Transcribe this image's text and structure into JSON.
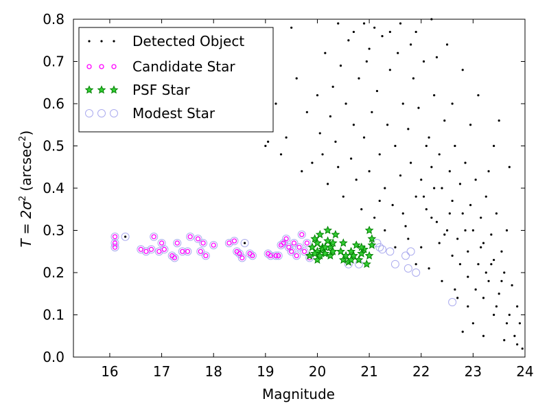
{
  "chart_data": {
    "type": "scatter",
    "xlabel": "Magnitude",
    "ylabel_main": "T = 2σ",
    "ylabel_sup": "2",
    "ylabel_units_open": " (arcsec",
    "ylabel_units_sup": "2",
    "ylabel_units_close": ")",
    "xlim": [
      15.3,
      24.0
    ],
    "ylim": [
      0.0,
      0.8
    ],
    "xticks": [
      16,
      17,
      18,
      19,
      20,
      21,
      22,
      23,
      24
    ],
    "yticks": [
      0.0,
      0.1,
      0.2,
      0.3,
      0.4,
      0.5,
      0.6,
      0.7,
      0.8
    ],
    "xtick_labels": [
      "16",
      "17",
      "18",
      "19",
      "20",
      "21",
      "22",
      "23",
      "24"
    ],
    "ytick_labels": [
      "0.0",
      "0.1",
      "0.2",
      "0.3",
      "0.4",
      "0.5",
      "0.6",
      "0.7",
      "0.8"
    ],
    "grid": false,
    "legend_position": "top-left",
    "series": [
      {
        "name": "Detected Object",
        "marker": "dot",
        "color": "#000000",
        "points": [
          [
            16.3,
            0.285
          ],
          [
            18.6,
            0.27
          ],
          [
            19.0,
            0.5
          ],
          [
            19.05,
            0.51
          ],
          [
            19.1,
            0.55
          ],
          [
            19.2,
            0.6
          ],
          [
            19.3,
            0.48
          ],
          [
            19.4,
            0.52
          ],
          [
            19.5,
            0.78
          ],
          [
            19.6,
            0.66
          ],
          [
            19.7,
            0.44
          ],
          [
            19.8,
            0.58
          ],
          [
            19.9,
            0.46
          ],
          [
            20.0,
            0.62
          ],
          [
            20.05,
            0.53
          ],
          [
            20.1,
            0.48
          ],
          [
            20.15,
            0.72
          ],
          [
            20.2,
            0.41
          ],
          [
            20.25,
            0.57
          ],
          [
            20.3,
            0.64
          ],
          [
            20.35,
            0.51
          ],
          [
            20.4,
            0.45
          ],
          [
            20.45,
            0.69
          ],
          [
            20.5,
            0.38
          ],
          [
            20.55,
            0.6
          ],
          [
            20.6,
            0.75
          ],
          [
            20.65,
            0.47
          ],
          [
            20.7,
            0.55
          ],
          [
            20.75,
            0.42
          ],
          [
            20.8,
            0.66
          ],
          [
            20.85,
            0.35
          ],
          [
            20.9,
            0.52
          ],
          [
            20.95,
            0.7
          ],
          [
            21.0,
            0.44
          ],
          [
            21.05,
            0.58
          ],
          [
            21.1,
            0.33
          ],
          [
            21.15,
            0.63
          ],
          [
            21.2,
            0.48
          ],
          [
            21.25,
            0.76
          ],
          [
            21.3,
            0.4
          ],
          [
            21.35,
            0.55
          ],
          [
            21.4,
            0.68
          ],
          [
            21.45,
            0.36
          ],
          [
            21.5,
            0.5
          ],
          [
            21.55,
            0.72
          ],
          [
            21.6,
            0.43
          ],
          [
            21.65,
            0.6
          ],
          [
            21.7,
            0.31
          ],
          [
            21.75,
            0.54
          ],
          [
            21.8,
            0.46
          ],
          [
            21.85,
            0.66
          ],
          [
            21.9,
            0.38
          ],
          [
            21.95,
            0.59
          ],
          [
            22.0,
            0.42
          ],
          [
            22.05,
            0.7
          ],
          [
            22.1,
            0.35
          ],
          [
            22.15,
            0.52
          ],
          [
            22.2,
            0.45
          ],
          [
            22.25,
            0.62
          ],
          [
            22.3,
            0.32
          ],
          [
            22.35,
            0.48
          ],
          [
            22.4,
            0.4
          ],
          [
            22.45,
            0.56
          ],
          [
            22.5,
            0.3
          ],
          [
            22.55,
            0.44
          ],
          [
            22.6,
            0.37
          ],
          [
            22.65,
            0.5
          ],
          [
            22.7,
            0.28
          ],
          [
            22.75,
            0.41
          ],
          [
            22.8,
            0.34
          ],
          [
            22.85,
            0.46
          ],
          [
            22.9,
            0.25
          ],
          [
            22.95,
            0.36
          ],
          [
            23.0,
            0.3
          ],
          [
            23.05,
            0.42
          ],
          [
            23.1,
            0.22
          ],
          [
            23.15,
            0.33
          ],
          [
            23.2,
            0.27
          ],
          [
            23.25,
            0.38
          ],
          [
            23.3,
            0.18
          ],
          [
            23.35,
            0.29
          ],
          [
            23.4,
            0.23
          ],
          [
            23.45,
            0.34
          ],
          [
            23.5,
            0.15
          ],
          [
            23.55,
            0.25
          ],
          [
            23.6,
            0.2
          ],
          [
            23.65,
            0.3
          ],
          [
            23.7,
            0.1
          ],
          [
            23.75,
            0.17
          ],
          [
            23.8,
            0.05
          ],
          [
            23.85,
            0.12
          ],
          [
            23.9,
            0.08
          ],
          [
            23.95,
            0.02
          ],
          [
            22.9,
            0.12
          ],
          [
            23.0,
            0.08
          ],
          [
            23.2,
            0.05
          ],
          [
            23.4,
            0.1
          ],
          [
            22.7,
            0.14
          ],
          [
            23.6,
            0.04
          ],
          [
            22.8,
            0.06
          ],
          [
            21.1,
            0.78
          ],
          [
            21.6,
            0.79
          ],
          [
            22.2,
            0.8
          ],
          [
            20.9,
            0.79
          ],
          [
            21.9,
            0.77
          ],
          [
            22.5,
            0.74
          ],
          [
            22.8,
            0.68
          ],
          [
            23.1,
            0.62
          ],
          [
            23.5,
            0.56
          ],
          [
            23.7,
            0.45
          ],
          [
            23.4,
            0.5
          ],
          [
            22.6,
            0.6
          ],
          [
            22.3,
            0.71
          ],
          [
            21.8,
            0.74
          ],
          [
            21.4,
            0.77
          ],
          [
            21.0,
            0.73
          ],
          [
            20.7,
            0.77
          ],
          [
            20.4,
            0.79
          ],
          [
            22.95,
            0.55
          ],
          [
            23.3,
            0.44
          ],
          [
            22.1,
            0.5
          ],
          [
            21.75,
            0.28
          ],
          [
            22.0,
            0.26
          ],
          [
            22.2,
            0.33
          ],
          [
            22.45,
            0.29
          ],
          [
            22.6,
            0.24
          ],
          [
            22.75,
            0.22
          ],
          [
            22.9,
            0.19
          ],
          [
            23.05,
            0.16
          ],
          [
            23.2,
            0.14
          ],
          [
            21.3,
            0.3
          ],
          [
            21.5,
            0.26
          ],
          [
            21.9,
            0.22
          ],
          [
            22.15,
            0.21
          ],
          [
            22.4,
            0.18
          ],
          [
            22.65,
            0.16
          ],
          [
            23.25,
            0.2
          ],
          [
            23.45,
            0.12
          ],
          [
            23.65,
            0.08
          ],
          [
            23.85,
            0.03
          ],
          [
            22.05,
            0.38
          ],
          [
            22.25,
            0.4
          ],
          [
            22.55,
            0.34
          ],
          [
            22.85,
            0.3
          ],
          [
            23.15,
            0.26
          ],
          [
            23.35,
            0.22
          ],
          [
            23.55,
            0.18
          ],
          [
            22.35,
            0.27
          ],
          [
            21.65,
            0.34
          ],
          [
            21.2,
            0.37
          ]
        ]
      },
      {
        "name": "Candidate Star",
        "marker": "circle",
        "color": "#ff00ff",
        "points": [
          [
            16.1,
            0.285
          ],
          [
            16.1,
            0.27
          ],
          [
            16.1,
            0.26
          ],
          [
            16.6,
            0.255
          ],
          [
            16.7,
            0.25
          ],
          [
            16.8,
            0.255
          ],
          [
            16.85,
            0.285
          ],
          [
            16.95,
            0.25
          ],
          [
            17.0,
            0.27
          ],
          [
            17.05,
            0.255
          ],
          [
            17.2,
            0.24
          ],
          [
            17.25,
            0.235
          ],
          [
            17.3,
            0.27
          ],
          [
            17.4,
            0.25
          ],
          [
            17.5,
            0.25
          ],
          [
            17.55,
            0.285
          ],
          [
            17.7,
            0.28
          ],
          [
            17.75,
            0.25
          ],
          [
            17.8,
            0.27
          ],
          [
            17.85,
            0.24
          ],
          [
            18.0,
            0.265
          ],
          [
            18.3,
            0.27
          ],
          [
            18.4,
            0.275
          ],
          [
            18.45,
            0.25
          ],
          [
            18.5,
            0.245
          ],
          [
            18.55,
            0.235
          ],
          [
            18.7,
            0.245
          ],
          [
            18.75,
            0.24
          ],
          [
            19.05,
            0.245
          ],
          [
            19.1,
            0.24
          ],
          [
            19.2,
            0.24
          ],
          [
            19.25,
            0.24
          ],
          [
            19.3,
            0.265
          ],
          [
            19.35,
            0.27
          ],
          [
            19.4,
            0.28
          ],
          [
            19.45,
            0.26
          ],
          [
            19.5,
            0.25
          ],
          [
            19.55,
            0.27
          ],
          [
            19.6,
            0.24
          ],
          [
            19.65,
            0.26
          ],
          [
            19.7,
            0.29
          ],
          [
            19.75,
            0.25
          ],
          [
            19.8,
            0.27
          ],
          [
            19.85,
            0.235
          ]
        ]
      },
      {
        "name": "PSF Star",
        "marker": "star",
        "color": "#008000",
        "points": [
          [
            19.85,
            0.24
          ],
          [
            19.9,
            0.26
          ],
          [
            19.95,
            0.28
          ],
          [
            20.0,
            0.25
          ],
          [
            20.0,
            0.27
          ],
          [
            20.05,
            0.24
          ],
          [
            20.05,
            0.29
          ],
          [
            20.1,
            0.26
          ],
          [
            20.1,
            0.255
          ],
          [
            20.15,
            0.245
          ],
          [
            20.2,
            0.275
          ],
          [
            20.2,
            0.3
          ],
          [
            20.25,
            0.26
          ],
          [
            20.25,
            0.24
          ],
          [
            20.3,
            0.25
          ],
          [
            20.35,
            0.29
          ],
          [
            20.5,
            0.27
          ],
          [
            20.5,
            0.23
          ],
          [
            20.55,
            0.24
          ],
          [
            20.6,
            0.225
          ],
          [
            20.65,
            0.25
          ],
          [
            20.7,
            0.24
          ],
          [
            20.75,
            0.265
          ],
          [
            20.8,
            0.23
          ],
          [
            20.85,
            0.245
          ],
          [
            20.9,
            0.255
          ],
          [
            20.95,
            0.22
          ],
          [
            21.0,
            0.3
          ],
          [
            21.05,
            0.265
          ],
          [
            21.05,
            0.28
          ],
          [
            20.0,
            0.23
          ],
          [
            19.95,
            0.245
          ],
          [
            20.15,
            0.26
          ],
          [
            20.3,
            0.27
          ],
          [
            20.45,
            0.25
          ],
          [
            20.65,
            0.23
          ],
          [
            20.85,
            0.26
          ],
          [
            21.0,
            0.24
          ]
        ]
      },
      {
        "name": "Modest Star",
        "marker": "open-circle",
        "color": "#aaaaee",
        "points": [
          [
            16.1,
            0.285
          ],
          [
            16.1,
            0.27
          ],
          [
            16.1,
            0.26
          ],
          [
            16.3,
            0.285
          ],
          [
            16.6,
            0.255
          ],
          [
            16.7,
            0.25
          ],
          [
            16.8,
            0.255
          ],
          [
            16.85,
            0.285
          ],
          [
            16.95,
            0.25
          ],
          [
            17.0,
            0.27
          ],
          [
            17.05,
            0.255
          ],
          [
            17.2,
            0.24
          ],
          [
            17.25,
            0.235
          ],
          [
            17.3,
            0.27
          ],
          [
            17.4,
            0.25
          ],
          [
            17.5,
            0.25
          ],
          [
            17.55,
            0.285
          ],
          [
            17.7,
            0.28
          ],
          [
            17.75,
            0.25
          ],
          [
            17.8,
            0.27
          ],
          [
            17.85,
            0.24
          ],
          [
            18.0,
            0.265
          ],
          [
            18.3,
            0.27
          ],
          [
            18.4,
            0.275
          ],
          [
            18.45,
            0.25
          ],
          [
            18.5,
            0.245
          ],
          [
            18.55,
            0.235
          ],
          [
            18.6,
            0.27
          ],
          [
            18.7,
            0.245
          ],
          [
            18.75,
            0.24
          ],
          [
            19.05,
            0.245
          ],
          [
            19.1,
            0.24
          ],
          [
            19.2,
            0.24
          ],
          [
            19.25,
            0.24
          ],
          [
            19.3,
            0.265
          ],
          [
            19.35,
            0.27
          ],
          [
            19.4,
            0.28
          ],
          [
            19.45,
            0.26
          ],
          [
            19.5,
            0.25
          ],
          [
            19.55,
            0.27
          ],
          [
            19.6,
            0.24
          ],
          [
            19.65,
            0.26
          ],
          [
            19.7,
            0.29
          ],
          [
            19.75,
            0.25
          ],
          [
            19.8,
            0.27
          ],
          [
            19.85,
            0.235
          ],
          [
            20.6,
            0.22
          ],
          [
            20.8,
            0.22
          ],
          [
            21.15,
            0.27
          ],
          [
            21.2,
            0.26
          ],
          [
            21.4,
            0.25
          ],
          [
            21.5,
            0.22
          ],
          [
            21.7,
            0.24
          ],
          [
            21.75,
            0.21
          ],
          [
            21.9,
            0.2
          ],
          [
            22.6,
            0.13
          ],
          [
            21.8,
            0.25
          ],
          [
            21.25,
            0.255
          ]
        ]
      }
    ]
  }
}
